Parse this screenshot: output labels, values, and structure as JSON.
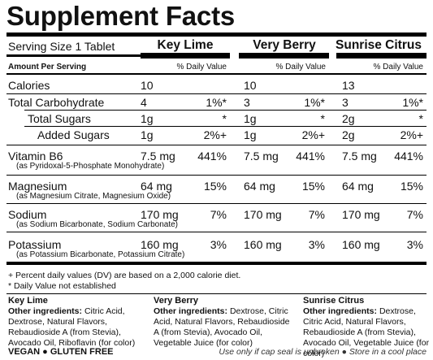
{
  "title": "Supplement Facts",
  "serving_size": "Serving Size 1 Tablet",
  "amount_per_serving": "Amount Per Serving",
  "daily_value_header": "% Daily Value",
  "columns": [
    "Key Lime",
    "Very Berry",
    "Sunrise Citrus"
  ],
  "rows": [
    {
      "name": "Calories",
      "sub": "",
      "indent": 0,
      "bold": false,
      "vals": [
        {
          "amt": "10",
          "dv": ""
        },
        {
          "amt": "10",
          "dv": ""
        },
        {
          "amt": "13",
          "dv": ""
        }
      ]
    },
    {
      "name": "Total Carbohydrate",
      "sub": "",
      "indent": 0,
      "bold": false,
      "vals": [
        {
          "amt": "4",
          "dv": "1%*"
        },
        {
          "amt": "3",
          "dv": "1%*"
        },
        {
          "amt": "3",
          "dv": "1%*"
        }
      ]
    },
    {
      "name": "Total Sugars",
      "sub": "",
      "indent": 1,
      "bold": false,
      "vals": [
        {
          "amt": "1g",
          "dv": "*"
        },
        {
          "amt": "1g",
          "dv": "*"
        },
        {
          "amt": "2g",
          "dv": "*"
        }
      ]
    },
    {
      "name": "Added Sugars",
      "sub": "",
      "indent": 2,
      "bold": false,
      "vals": [
        {
          "amt": "1g",
          "dv": "2%+"
        },
        {
          "amt": "1g",
          "dv": "2%+"
        },
        {
          "amt": "2g",
          "dv": "2%+"
        }
      ]
    },
    {
      "name": "Vitamin B6",
      "sub": "(as Pyridoxal-5-Phosphate Monohydrate)",
      "indent": 0,
      "bold": false,
      "vals": [
        {
          "amt": "7.5 mg",
          "dv": "441%"
        },
        {
          "amt": "7.5 mg",
          "dv": "441%"
        },
        {
          "amt": "7.5 mg",
          "dv": "441%"
        }
      ]
    },
    {
      "name": "Magnesium",
      "sub": "(as Magnesium Citrate, Magnesium Oxide)",
      "indent": 0,
      "bold": false,
      "vals": [
        {
          "amt": "64 mg",
          "dv": "15%"
        },
        {
          "amt": "64 mg",
          "dv": "15%"
        },
        {
          "amt": "64 mg",
          "dv": "15%"
        }
      ]
    },
    {
      "name": "Sodium",
      "sub": "(as Sodium Bicarbonate, Sodium Carbonate)",
      "indent": 0,
      "bold": false,
      "vals": [
        {
          "amt": "170 mg",
          "dv": "7%"
        },
        {
          "amt": "170 mg",
          "dv": "7%"
        },
        {
          "amt": "170 mg",
          "dv": "7%"
        }
      ]
    },
    {
      "name": "Potassium",
      "sub": "(as Potassium Bicarbonate, Potassium Citrate)",
      "indent": 0,
      "bold": false,
      "vals": [
        {
          "amt": "160 mg",
          "dv": "3%"
        },
        {
          "amt": "160 mg",
          "dv": "3%"
        },
        {
          "amt": "160 mg",
          "dv": "3%"
        }
      ]
    }
  ],
  "footnotes": [
    "+ Percent daily values (DV) are based on a 2,000 calorie diet.",
    "* Daily Value not established"
  ],
  "ingredients": [
    {
      "flavor": "Key Lime",
      "label": "Other ingredients:",
      "text": "Citric Acid, Dextrose, Natural Flavors, Rebaudioside A (from Stevia), Avocado Oil, Riboflavin (for color)"
    },
    {
      "flavor": "Very Berry",
      "label": "Other ingredients:",
      "text": "Dextrose, Citric Acid, Natural Flavors, Rebaudioside A (from Stevia), Avocado Oil, Vegetable Juice (for color)"
    },
    {
      "flavor": "Sunrise Citrus",
      "label": "Other ingredients:",
      "text": "Dextrose, Citric Acid, Natural Flavors, Rebaudioside A (from Stevia), Avocado Oil, Vegetable Juice (for color)"
    }
  ],
  "bottom_left": "VEGAN ● GLUTEN FREE",
  "bottom_right": "Use only if cap seal is unbroken ● Store in a cool place"
}
